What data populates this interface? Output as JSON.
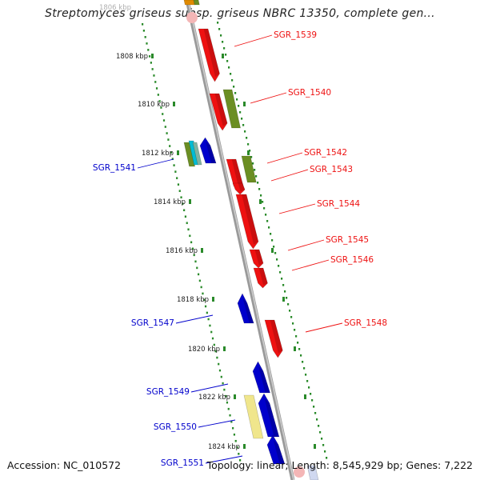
{
  "header": {
    "title": "Streptomyces griseus subsp. griseus NBRC 13350, complete gen...",
    "accession": "Accession: NC_010572",
    "summary": "Topology: linear; Length: 8,545,929 bp; Genes: 7,222"
  },
  "ruler": {
    "partial_label": "1806 kbp",
    "ticks": [
      "1808 kbp",
      "1810 kbp",
      "1812 kbp",
      "1814 kbp",
      "1816 kbp",
      "1818 kbp",
      "1820 kbp",
      "1822 kbp",
      "1824 kbp"
    ]
  },
  "genes": [
    {
      "id": "SGR_1539",
      "strand": "+",
      "color": "#ee1111"
    },
    {
      "id": "SGR_1540",
      "strand": "+",
      "color": "#ee1111"
    },
    {
      "id": "SGR_1541",
      "strand": "-",
      "color": "#0000cc"
    },
    {
      "id": "SGR_1542",
      "strand": "+",
      "color": "#ee1111"
    },
    {
      "id": "SGR_1543",
      "strand": "+",
      "color": "#ee1111"
    },
    {
      "id": "SGR_1544",
      "strand": "+",
      "color": "#ee1111"
    },
    {
      "id": "SGR_1545",
      "strand": "+",
      "color": "#ee1111"
    },
    {
      "id": "SGR_1546",
      "strand": "+",
      "color": "#ee1111"
    },
    {
      "id": "SGR_1547",
      "strand": "-",
      "color": "#0000cc"
    },
    {
      "id": "SGR_1548",
      "strand": "+",
      "color": "#ee1111"
    },
    {
      "id": "SGR_1549",
      "strand": "-",
      "color": "#0000cc"
    },
    {
      "id": "SGR_1550",
      "strand": "-",
      "color": "#0000cc"
    },
    {
      "id": "SGR_1551",
      "strand": "-",
      "color": "#0000cc"
    }
  ],
  "colors": {
    "forward_gene": "#ee1111",
    "reverse_gene": "#0000cc",
    "olive_feature": "#6b8e23",
    "pale_feature": "#f0e68c",
    "cyan_feature": "#00bcd4",
    "genome_line": "#888888",
    "ruler_dots": "#2a8a2a"
  }
}
